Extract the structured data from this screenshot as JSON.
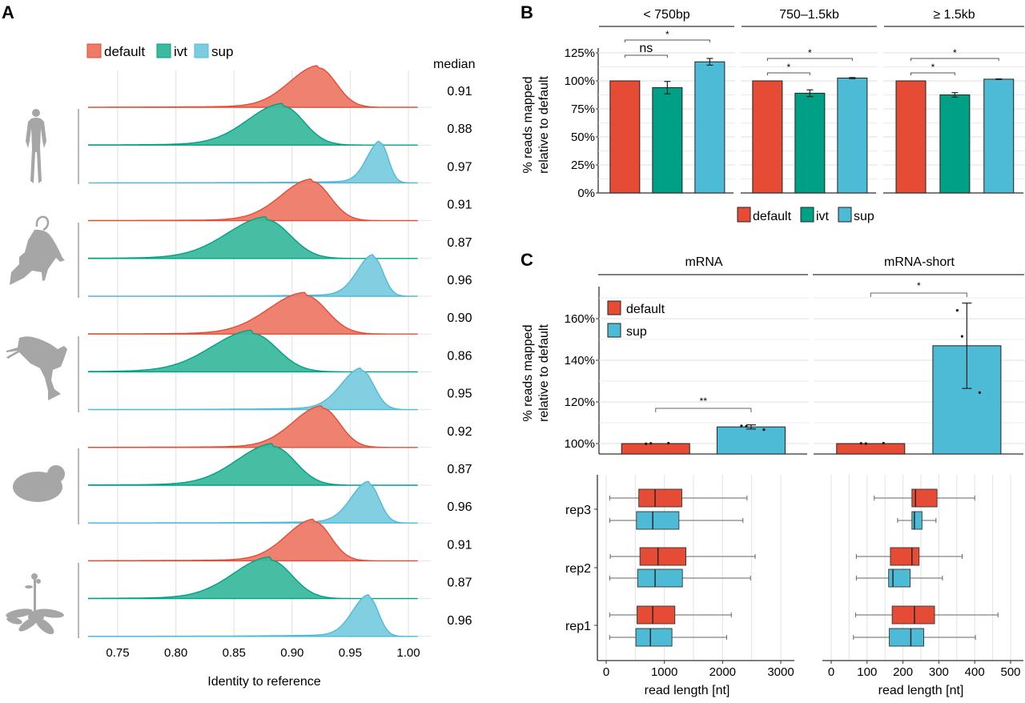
{
  "colors": {
    "default": "#E64B35",
    "default_ridge": "#EE7A68",
    "ivt": "#00A087",
    "ivt_ridge": "#3DBA9E",
    "sup": "#4DBBD5",
    "sup_ridge": "#7CCCE0",
    "grid": "#E5E5E5",
    "axis": "#333333",
    "silhouette": "#A6A6A6"
  },
  "chart_data": [
    {
      "panel": "A",
      "type": "area",
      "subtype": "ridgeline-density",
      "panel_label": "A",
      "xlabel": "Identity to reference",
      "xlim": [
        0.725,
        1.01
      ],
      "xticks": [
        "0.75",
        "0.80",
        "0.85",
        "0.90",
        "0.95",
        "1.00"
      ],
      "xtick_values": [
        0.75,
        0.8,
        0.85,
        0.9,
        0.95,
        1.0
      ],
      "grid": true,
      "legend": [
        "default",
        "ivt",
        "sup"
      ],
      "legend_position": "top",
      "median_header": "median",
      "organisms": [
        {
          "icon": "human-icon",
          "name": "human",
          "rows": [
            {
              "model": "default",
              "median": "0.91",
              "mode": 0.923,
              "spread": 0.02,
              "tail": 0.07
            },
            {
              "model": "ivt",
              "median": "0.88",
              "mode": 0.892,
              "spread": 0.024,
              "tail": 0.08
            },
            {
              "model": "sup",
              "median": "0.97",
              "mode": 0.976,
              "spread": 0.009,
              "tail": 0.06
            }
          ]
        },
        {
          "icon": "mouse-icon",
          "name": "mouse",
          "rows": [
            {
              "model": "default",
              "median": "0.91",
              "mode": 0.917,
              "spread": 0.021,
              "tail": 0.07
            },
            {
              "model": "ivt",
              "median": "0.87",
              "mode": 0.878,
              "spread": 0.027,
              "tail": 0.09
            },
            {
              "model": "sup",
              "median": "0.96",
              "mode": 0.97,
              "spread": 0.011,
              "tail": 0.07
            }
          ]
        },
        {
          "icon": "frog-icon",
          "name": "frog",
          "rows": [
            {
              "model": "default",
              "median": "0.90",
              "mode": 0.911,
              "spread": 0.025,
              "tail": 0.08
            },
            {
              "model": "ivt",
              "median": "0.86",
              "mode": 0.866,
              "spread": 0.028,
              "tail": 0.1
            },
            {
              "model": "sup",
              "median": "0.95",
              "mode": 0.96,
              "spread": 0.014,
              "tail": 0.08
            }
          ]
        },
        {
          "icon": "yeast-icon",
          "name": "yeast",
          "rows": [
            {
              "model": "default",
              "median": "0.92",
              "mode": 0.926,
              "spread": 0.02,
              "tail": 0.07
            },
            {
              "model": "ivt",
              "median": "0.87",
              "mode": 0.884,
              "spread": 0.025,
              "tail": 0.09
            },
            {
              "model": "sup",
              "median": "0.96",
              "mode": 0.966,
              "spread": 0.012,
              "tail": 0.07
            }
          ]
        },
        {
          "icon": "plant-icon",
          "name": "plant",
          "rows": [
            {
              "model": "default",
              "median": "0.91",
              "mode": 0.919,
              "spread": 0.019,
              "tail": 0.07
            },
            {
              "model": "ivt",
              "median": "0.87",
              "mode": 0.881,
              "spread": 0.025,
              "tail": 0.09
            },
            {
              "model": "sup",
              "median": "0.96",
              "mode": 0.966,
              "spread": 0.011,
              "tail": 0.07
            }
          ]
        }
      ]
    },
    {
      "panel": "B",
      "type": "bar",
      "panel_label": "B",
      "ylabel_line1": "% reads mapped",
      "ylabel_line2": "relative to default",
      "ylim": [
        0,
        125
      ],
      "yticks": [
        "0%",
        "25%",
        "50%",
        "75%",
        "100%",
        "125%"
      ],
      "ytick_values": [
        0,
        25,
        50,
        75,
        100,
        125
      ],
      "grid": true,
      "legend": [
        "default",
        "ivt",
        "sup"
      ],
      "legend_position": "bottom",
      "facets": [
        {
          "title": "< 750bp",
          "bars": [
            {
              "model": "default",
              "value": 100,
              "err": 0
            },
            {
              "model": "ivt",
              "value": 94,
              "err": 5.5
            },
            {
              "model": "sup",
              "value": 117,
              "err": 3
            }
          ],
          "annotations": [
            {
              "from": 0,
              "to": 1,
              "label": "ns",
              "level": 1
            },
            {
              "from": 0,
              "to": 2,
              "label": "*",
              "level": 2
            }
          ]
        },
        {
          "title": "750–1.5kb",
          "bars": [
            {
              "model": "default",
              "value": 100,
              "err": 0
            },
            {
              "model": "ivt",
              "value": 89,
              "err": 3
            },
            {
              "model": "sup",
              "value": 102.5,
              "err": 0.5
            }
          ],
          "annotations": [
            {
              "from": 0,
              "to": 1,
              "label": "*",
              "level": 1
            },
            {
              "from": 0,
              "to": 2,
              "label": "*",
              "level": 2
            }
          ]
        },
        {
          "title": "≥ 1.5kb",
          "bars": [
            {
              "model": "default",
              "value": 100,
              "err": 0
            },
            {
              "model": "ivt",
              "value": 87.5,
              "err": 2
            },
            {
              "model": "sup",
              "value": 101.5,
              "err": 0.3
            }
          ],
          "annotations": [
            {
              "from": 0,
              "to": 1,
              "label": "*",
              "level": 1
            },
            {
              "from": 0,
              "to": 2,
              "label": "*",
              "level": 2
            }
          ]
        }
      ]
    },
    {
      "panel": "C-top",
      "type": "bar",
      "panel_label": "C",
      "ylabel_line1": "% reads mapped",
      "ylabel_line2": "relative to default",
      "ylim": [
        95,
        175
      ],
      "yticks": [
        "100%",
        "120%",
        "140%",
        "160%"
      ],
      "ytick_values": [
        100,
        120,
        140,
        160
      ],
      "grid": true,
      "legend": [
        "default",
        "sup"
      ],
      "legend_position": "top-left",
      "facets": [
        {
          "title": "mRNA",
          "bars": [
            {
              "model": "default",
              "value": 100,
              "err": 0,
              "points": [
                99.9,
                100.1,
                100.2
              ]
            },
            {
              "model": "sup",
              "value": 108,
              "err": 1,
              "points": [
                108.5,
                108.3,
                106.7
              ]
            }
          ],
          "annotations": [
            {
              "from": 0,
              "to": 1,
              "label": "**"
            }
          ]
        },
        {
          "title": "mRNA-short",
          "bars": [
            {
              "model": "default",
              "value": 100,
              "err": 0,
              "points": [
                100.1,
                100.0,
                100.2
              ]
            },
            {
              "model": "sup",
              "value": 147,
              "err": 20.5,
              "points": [
                164,
                151.5,
                124.5
              ]
            }
          ],
          "annotations": [
            {
              "from": 0,
              "to": 1,
              "label": "*"
            }
          ]
        }
      ]
    },
    {
      "panel": "C-bottom",
      "type": "boxplot",
      "xlabel": "read length [nt]",
      "categories": [
        "rep3",
        "rep2",
        "rep1"
      ],
      "grid": true,
      "facets": [
        {
          "title": "mRNA",
          "xlim": [
            -80,
            3150
          ],
          "xticks": [
            "0",
            "1000",
            "2000",
            "3000"
          ],
          "xtick_values": [
            0,
            1000,
            2000,
            3000
          ],
          "boxes": [
            {
              "rep": "rep3",
              "model": "default",
              "min": 60,
              "q1": 560,
              "median": 840,
              "q3": 1300,
              "max": 2420
            },
            {
              "rep": "rep3",
              "model": "sup",
              "min": 60,
              "q1": 520,
              "median": 800,
              "q3": 1250,
              "max": 2350
            },
            {
              "rep": "rep2",
              "model": "default",
              "min": 70,
              "q1": 580,
              "median": 890,
              "q3": 1370,
              "max": 2560
            },
            {
              "rep": "rep2",
              "model": "sup",
              "min": 60,
              "q1": 540,
              "median": 840,
              "q3": 1310,
              "max": 2480
            },
            {
              "rep": "rep1",
              "model": "default",
              "min": 60,
              "q1": 530,
              "median": 800,
              "q3": 1180,
              "max": 2150
            },
            {
              "rep": "rep1",
              "model": "sup",
              "min": 60,
              "q1": 510,
              "median": 760,
              "q3": 1130,
              "max": 2070
            }
          ]
        },
        {
          "title": "mRNA-short",
          "xlim": [
            -25,
            525
          ],
          "xticks": [
            "0",
            "100",
            "200",
            "300",
            "400",
            "500"
          ],
          "xtick_values": [
            0,
            100,
            200,
            300,
            400,
            500
          ],
          "boxes": [
            {
              "rep": "rep3",
              "model": "default",
              "min": 120,
              "q1": 225,
              "median": 235,
              "q3": 295,
              "max": 400
            },
            {
              "rep": "rep3",
              "model": "sup",
              "min": 185,
              "q1": 225,
              "median": 232,
              "q3": 253,
              "max": 292
            },
            {
              "rep": "rep2",
              "model": "default",
              "min": 70,
              "q1": 165,
              "median": 225,
              "q3": 245,
              "max": 365
            },
            {
              "rep": "rep2",
              "model": "sup",
              "min": 70,
              "q1": 160,
              "median": 172,
              "q3": 220,
              "max": 310
            },
            {
              "rep": "rep1",
              "model": "default",
              "min": 68,
              "q1": 170,
              "median": 232,
              "q3": 288,
              "max": 465
            },
            {
              "rep": "rep1",
              "model": "sup",
              "min": 62,
              "q1": 162,
              "median": 222,
              "q3": 258,
              "max": 402
            }
          ]
        }
      ]
    }
  ]
}
